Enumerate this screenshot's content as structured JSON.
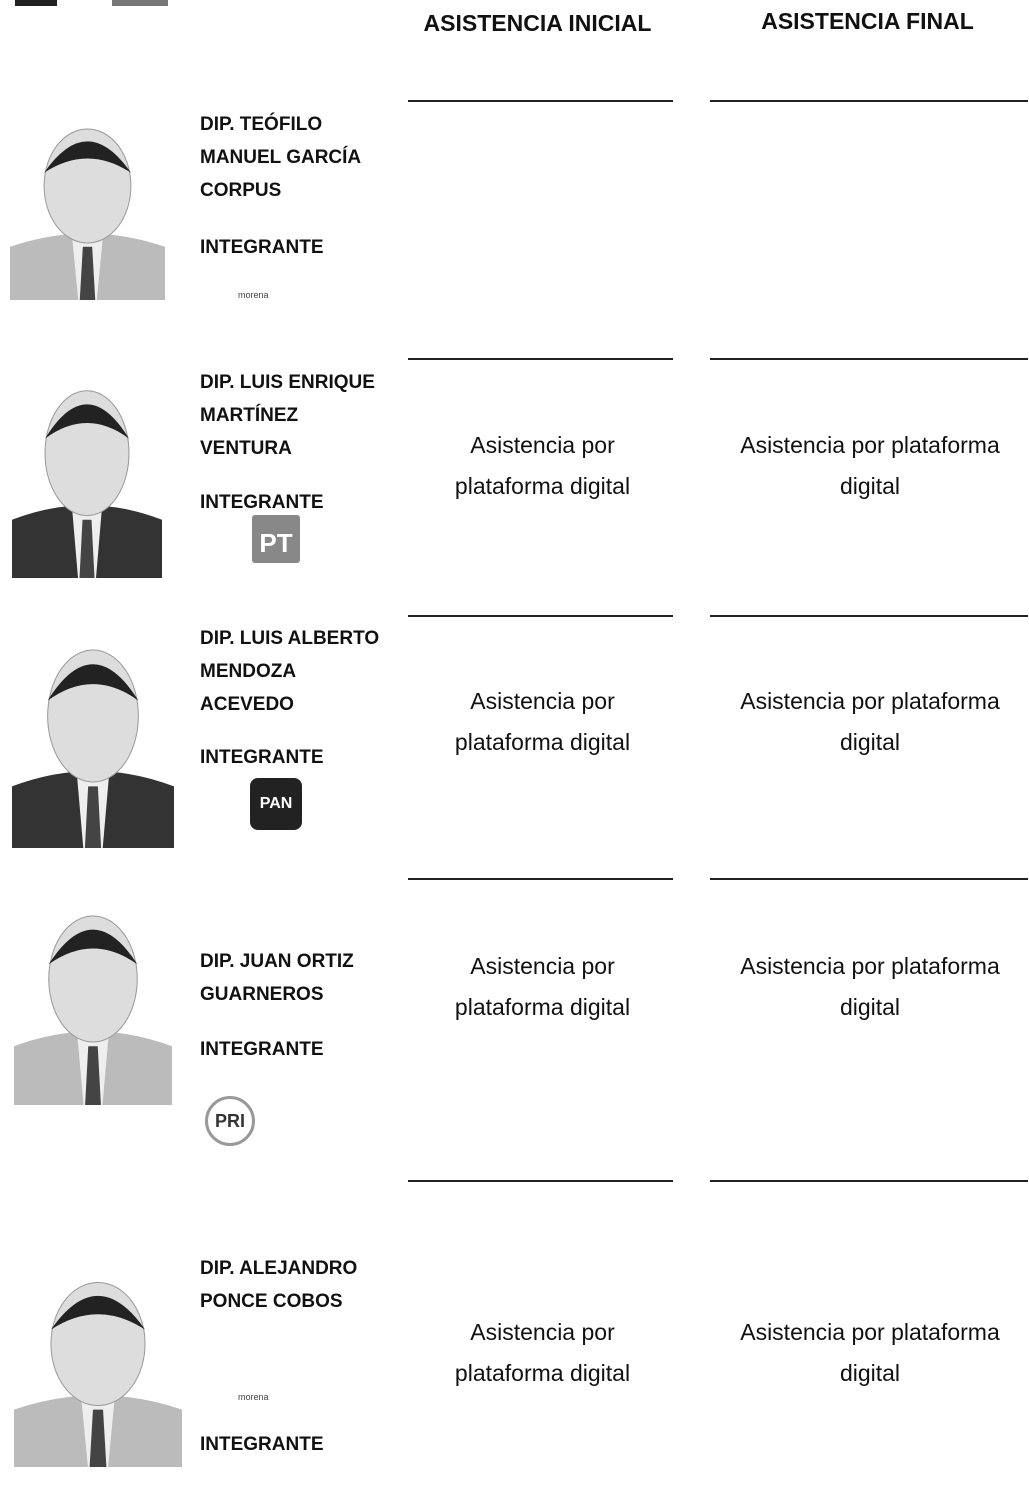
{
  "header": {
    "col_initial": "ASISTENCIA INICIAL",
    "col_final": "ASISTENCIA FINAL"
  },
  "rows": [
    {
      "name_lines": [
        "DIP. TEÓFILO",
        "MANUEL GARCÍA",
        "CORPUS"
      ],
      "role": "INTEGRANTE",
      "party": "morena"
    },
    {
      "name_lines": [
        "DIP. LUIS ENRIQUE",
        "MARTÍNEZ",
        "VENTURA"
      ],
      "role": "INTEGRANTE",
      "party": "PT",
      "initial": "Asistencia por plataforma digital",
      "final": "Asistencia por plataforma digital"
    },
    {
      "name_lines": [
        "DIP. LUIS ALBERTO",
        "MENDOZA",
        "ACEVEDO"
      ],
      "role": "INTEGRANTE",
      "party": "PAN",
      "initial": "Asistencia por plataforma digital",
      "final": "Asistencia por plataforma digital"
    },
    {
      "name_lines": [
        "DIP. JUAN ORTIZ",
        "GUARNEROS"
      ],
      "role": "INTEGRANTE",
      "party": "PRI",
      "initial": "Asistencia por plataforma digital",
      "final": "Asistencia por plataforma digital"
    },
    {
      "name_lines": [
        "DIP. ALEJANDRO",
        "PONCE COBOS"
      ],
      "role": "INTEGRANTE",
      "party": "morena",
      "initial": "Asistencia por plataforma digital",
      "final": "Asistencia por plataforma digital"
    }
  ]
}
